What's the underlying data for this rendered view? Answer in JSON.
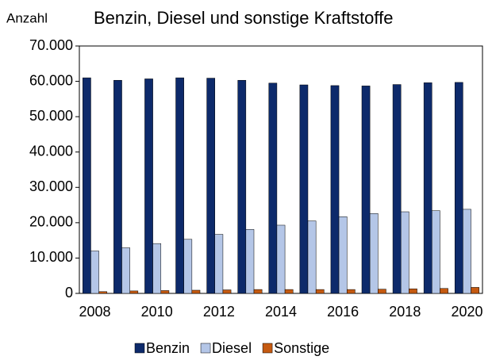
{
  "chart_data": {
    "type": "bar",
    "title": "Benzin, Diesel und sonstige Kraftstoffe",
    "y_label": "Anzahl",
    "categories": [
      "2008",
      null,
      "2010",
      null,
      "2012",
      null,
      "2014",
      null,
      "2016",
      null,
      "2018",
      null,
      "2020"
    ],
    "series": [
      {
        "name": "Benzin",
        "color": "#0d2a6b",
        "values": [
          61000,
          60300,
          60700,
          61000,
          60900,
          60300,
          59500,
          59000,
          58800,
          58700,
          59100,
          59600,
          59700
        ]
      },
      {
        "name": "Diesel",
        "color": "#b4c6e7",
        "values": [
          12000,
          12900,
          14100,
          15300,
          16700,
          18100,
          19300,
          20500,
          21700,
          22600,
          23100,
          23400,
          23800
        ]
      },
      {
        "name": "Sonstige",
        "color": "#c55a11",
        "values": [
          500,
          700,
          800,
          900,
          1000,
          1100,
          1100,
          1100,
          1100,
          1200,
          1300,
          1400,
          1700
        ]
      }
    ],
    "ylim": [
      0,
      70000
    ],
    "yticks": [
      0,
      {
        "value": 10000,
        "label": "10.000"
      },
      {
        "value": 20000,
        "label": "20.000"
      },
      {
        "value": 30000,
        "label": "30.000"
      },
      {
        "value": 40000,
        "label": "40.000"
      },
      {
        "value": 50000,
        "label": "50.000"
      },
      {
        "value": 60000,
        "label": "60.000"
      },
      {
        "value": 70000,
        "label": "70.000"
      }
    ],
    "legend": "bottom"
  }
}
